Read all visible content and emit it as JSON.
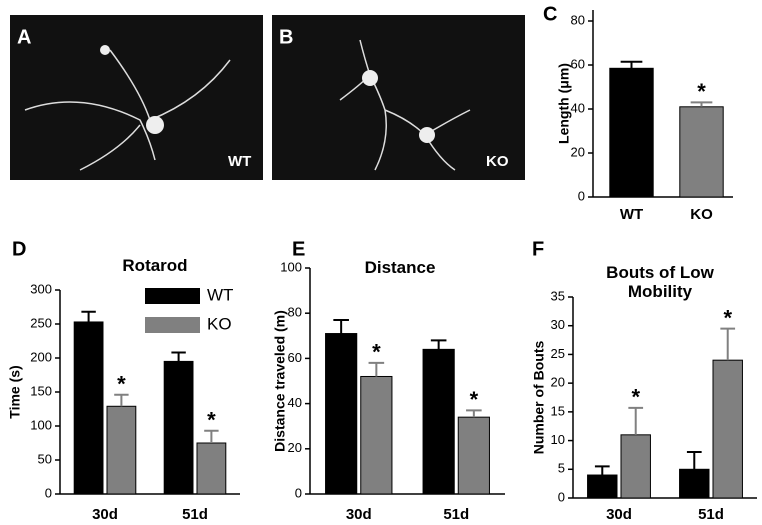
{
  "images": [
    {
      "label": "A",
      "caption": "WT"
    },
    {
      "label": "B",
      "caption": "KO"
    }
  ],
  "chart_data": [
    {
      "type": "bar",
      "panel_label": "C",
      "ylabel": "Length (μm)",
      "categories": [
        "WT",
        "KO"
      ],
      "values": [
        58.5,
        41
      ],
      "errors": [
        3,
        2
      ],
      "markers": [
        null,
        "*"
      ],
      "colors": [
        "#000000",
        "#808080"
      ],
      "ylim": [
        0,
        85
      ],
      "yticks": [
        0,
        20,
        40,
        60,
        80
      ]
    },
    {
      "type": "bar",
      "panel_label": "D",
      "title": "Rotarod",
      "ylabel": "Time (s)",
      "categories": [
        "30d",
        "51d"
      ],
      "series": [
        {
          "name": "WT",
          "color": "#000000",
          "values": [
            253,
            195
          ],
          "errors": [
            15,
            13
          ],
          "markers": [
            null,
            null
          ]
        },
        {
          "name": "KO",
          "color": "#808080",
          "values": [
            129,
            75
          ],
          "errors": [
            17,
            18
          ],
          "markers": [
            "*",
            "*"
          ]
        }
      ],
      "ylim": [
        0,
        300
      ],
      "yticks": [
        0,
        50,
        100,
        150,
        200,
        250,
        300
      ],
      "legend": "top-right"
    },
    {
      "type": "bar",
      "panel_label": "E",
      "title": "Distance",
      "ylabel": "Distance traveled (m)",
      "categories": [
        "30d",
        "51d"
      ],
      "series": [
        {
          "name": "WT",
          "color": "#000000",
          "values": [
            71,
            64
          ],
          "errors": [
            6,
            4
          ],
          "markers": [
            null,
            null
          ]
        },
        {
          "name": "KO",
          "color": "#808080",
          "values": [
            52,
            34
          ],
          "errors": [
            6,
            3
          ],
          "markers": [
            "*",
            "*"
          ]
        }
      ],
      "ylim": [
        0,
        100
      ],
      "yticks": [
        0,
        20,
        40,
        60,
        80,
        100
      ]
    },
    {
      "type": "bar",
      "panel_label": "F",
      "title": "Bouts of Low Mobility",
      "ylabel": "Number of Bouts",
      "categories": [
        "30d",
        "51d"
      ],
      "series": [
        {
          "name": "WT",
          "color": "#000000",
          "values": [
            4,
            5
          ],
          "errors": [
            1.5,
            3
          ],
          "markers": [
            null,
            null
          ]
        },
        {
          "name": "KO",
          "color": "#808080",
          "values": [
            11,
            24
          ],
          "errors": [
            4.7,
            5.5
          ],
          "markers": [
            "*",
            "*"
          ]
        }
      ],
      "ylim": [
        0,
        35
      ],
      "yticks": [
        0,
        5,
        10,
        15,
        20,
        25,
        30,
        35
      ]
    }
  ]
}
